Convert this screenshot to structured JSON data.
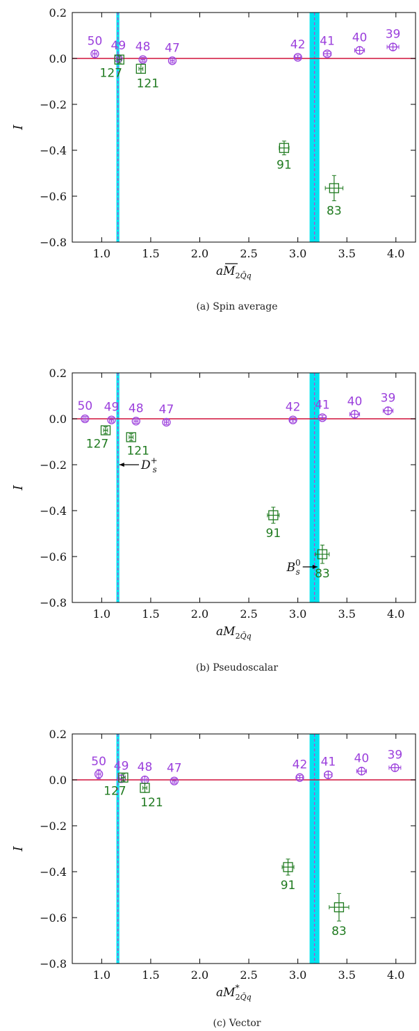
{
  "colors": {
    "purple": "#9b3fdc",
    "green": "#1f7a1f",
    "zero_line": "#d0103a",
    "band": "#00e5f0",
    "band_center": "#cc33cc"
  },
  "chart_data": [
    {
      "type": "scatter",
      "caption": "(a) Spin average",
      "ylabel": "I",
      "xlabel": {
        "base": "aM",
        "overline": true,
        "star": false
      },
      "xlim": [
        0.7,
        4.2
      ],
      "ylim": [
        -0.8,
        0.2
      ],
      "xticks": [
        "1.0",
        "1.5",
        "2.0",
        "2.5",
        "3.0",
        "3.5",
        "4.0"
      ],
      "yticks": [
        "0.2",
        "0.0",
        "−0.2",
        "−0.4",
        "−0.6",
        "−0.8"
      ],
      "bands": [
        {
          "x": [
            1.15,
            1.18
          ],
          "center": 1.165
        },
        {
          "x": [
            3.12,
            3.22
          ],
          "center": 3.17
        }
      ],
      "series": [
        {
          "marker": "circle",
          "color": "purple",
          "points": [
            {
              "label": "50",
              "x": 0.93,
              "y": 0.02,
              "xerr": 0.02,
              "yerr": 0.015
            },
            {
              "label": "49",
              "x": 1.17,
              "y": 0.0,
              "xerr": 0.02,
              "yerr": 0.015
            },
            {
              "label": "48",
              "x": 1.42,
              "y": -0.005,
              "xerr": 0.02,
              "yerr": 0.01
            },
            {
              "label": "47",
              "x": 1.72,
              "y": -0.01,
              "xerr": 0.02,
              "yerr": 0.01
            },
            {
              "label": "42",
              "x": 3.0,
              "y": 0.005,
              "xerr": 0.03,
              "yerr": 0.01
            },
            {
              "label": "41",
              "x": 3.3,
              "y": 0.02,
              "xerr": 0.04,
              "yerr": 0.01
            },
            {
              "label": "40",
              "x": 3.63,
              "y": 0.035,
              "xerr": 0.05,
              "yerr": 0.015
            },
            {
              "label": "39",
              "x": 3.97,
              "y": 0.05,
              "xerr": 0.06,
              "yerr": 0.015
            }
          ]
        },
        {
          "marker": "square",
          "color": "green",
          "points": [
            {
              "label": "127",
              "x": 1.18,
              "y": -0.005,
              "xerr": 0.02,
              "yerr": 0.015
            },
            {
              "label": "121",
              "x": 1.4,
              "y": -0.045,
              "xerr": 0.02,
              "yerr": 0.02
            },
            {
              "label": "91",
              "x": 2.86,
              "y": -0.39,
              "xerr": 0.05,
              "yerr": 0.03
            },
            {
              "label": "83",
              "x": 3.37,
              "y": -0.565,
              "xerr": 0.09,
              "yerr": 0.055
            }
          ]
        }
      ],
      "annotations": []
    },
    {
      "type": "scatter",
      "caption": "(b) Pseudoscalar",
      "ylabel": "I",
      "xlabel": {
        "base": "aM",
        "overline": false,
        "star": false
      },
      "xlim": [
        0.7,
        4.2
      ],
      "ylim": [
        -0.8,
        0.2
      ],
      "xticks": [
        "1.0",
        "1.5",
        "2.0",
        "2.5",
        "3.0",
        "3.5",
        "4.0"
      ],
      "yticks": [
        "0.2",
        "0.0",
        "−0.2",
        "−0.4",
        "−0.6",
        "−0.8"
      ],
      "bands": [
        {
          "x": [
            1.15,
            1.18
          ],
          "center": 1.165
        },
        {
          "x": [
            3.12,
            3.22
          ],
          "center": 3.17
        }
      ],
      "series": [
        {
          "marker": "circle",
          "color": "purple",
          "points": [
            {
              "label": "50",
              "x": 0.83,
              "y": 0.0,
              "xerr": 0.02,
              "yerr": 0.01
            },
            {
              "label": "49",
              "x": 1.1,
              "y": -0.005,
              "xerr": 0.02,
              "yerr": 0.01
            },
            {
              "label": "48",
              "x": 1.35,
              "y": -0.01,
              "xerr": 0.02,
              "yerr": 0.01
            },
            {
              "label": "47",
              "x": 1.66,
              "y": -0.015,
              "xerr": 0.02,
              "yerr": 0.01
            },
            {
              "label": "42",
              "x": 2.95,
              "y": -0.005,
              "xerr": 0.03,
              "yerr": 0.01
            },
            {
              "label": "41",
              "x": 3.25,
              "y": 0.005,
              "xerr": 0.04,
              "yerr": 0.01
            },
            {
              "label": "40",
              "x": 3.58,
              "y": 0.02,
              "xerr": 0.05,
              "yerr": 0.015
            },
            {
              "label": "39",
              "x": 3.92,
              "y": 0.035,
              "xerr": 0.05,
              "yerr": 0.015
            }
          ]
        },
        {
          "marker": "square",
          "color": "green",
          "points": [
            {
              "label": "127",
              "x": 1.04,
              "y": -0.05,
              "xerr": 0.02,
              "yerr": 0.015
            },
            {
              "label": "121",
              "x": 1.3,
              "y": -0.08,
              "xerr": 0.02,
              "yerr": 0.015
            },
            {
              "label": "91",
              "x": 2.75,
              "y": -0.42,
              "xerr": 0.06,
              "yerr": 0.035
            },
            {
              "label": "83",
              "x": 3.25,
              "y": -0.59,
              "xerr": 0.07,
              "yerr": 0.04
            }
          ]
        }
      ],
      "annotations": [
        {
          "base": "D",
          "sub": "s",
          "sup": "+",
          "from_x": 1.38,
          "to_x": 1.18,
          "y": -0.2,
          "text_side": "right"
        },
        {
          "base": "B",
          "sub": "s",
          "sup": "0",
          "from_x": 3.05,
          "to_x": 3.2,
          "y": -0.645,
          "text_side": "left"
        }
      ]
    },
    {
      "type": "scatter",
      "caption": "(c) Vector",
      "ylabel": "I",
      "xlabel": {
        "base": "aM",
        "overline": false,
        "star": true
      },
      "xlim": [
        0.7,
        4.2
      ],
      "ylim": [
        -0.8,
        0.2
      ],
      "xticks": [
        "1.0",
        "1.5",
        "2.0",
        "2.5",
        "3.0",
        "3.5",
        "4.0"
      ],
      "yticks": [
        "0.2",
        "0.0",
        "−0.2",
        "−0.4",
        "−0.6",
        "−0.8"
      ],
      "bands": [
        {
          "x": [
            1.15,
            1.18
          ],
          "center": 1.165
        },
        {
          "x": [
            3.12,
            3.22
          ],
          "center": 3.17
        }
      ],
      "series": [
        {
          "marker": "circle",
          "color": "purple",
          "points": [
            {
              "label": "50",
              "x": 0.97,
              "y": 0.025,
              "xerr": 0.02,
              "yerr": 0.02
            },
            {
              "label": "49",
              "x": 1.2,
              "y": 0.005,
              "xerr": 0.02,
              "yerr": 0.015
            },
            {
              "label": "48",
              "x": 1.44,
              "y": 0.0,
              "xerr": 0.02,
              "yerr": 0.015
            },
            {
              "label": "47",
              "x": 1.74,
              "y": -0.005,
              "xerr": 0.02,
              "yerr": 0.01
            },
            {
              "label": "42",
              "x": 3.02,
              "y": 0.01,
              "xerr": 0.03,
              "yerr": 0.01
            },
            {
              "label": "41",
              "x": 3.31,
              "y": 0.022,
              "xerr": 0.04,
              "yerr": 0.015
            },
            {
              "label": "40",
              "x": 3.65,
              "y": 0.038,
              "xerr": 0.05,
              "yerr": 0.015
            },
            {
              "label": "39",
              "x": 3.99,
              "y": 0.053,
              "xerr": 0.06,
              "yerr": 0.015
            }
          ]
        },
        {
          "marker": "square",
          "color": "green",
          "points": [
            {
              "label": "127",
              "x": 1.22,
              "y": 0.01,
              "xerr": 0.02,
              "yerr": 0.015
            },
            {
              "label": "121",
              "x": 1.44,
              "y": -0.035,
              "xerr": 0.02,
              "yerr": 0.02
            },
            {
              "label": "91",
              "x": 2.9,
              "y": -0.38,
              "xerr": 0.06,
              "yerr": 0.035
            },
            {
              "label": "83",
              "x": 3.42,
              "y": -0.555,
              "xerr": 0.1,
              "yerr": 0.06
            }
          ]
        }
      ],
      "annotations": []
    }
  ]
}
